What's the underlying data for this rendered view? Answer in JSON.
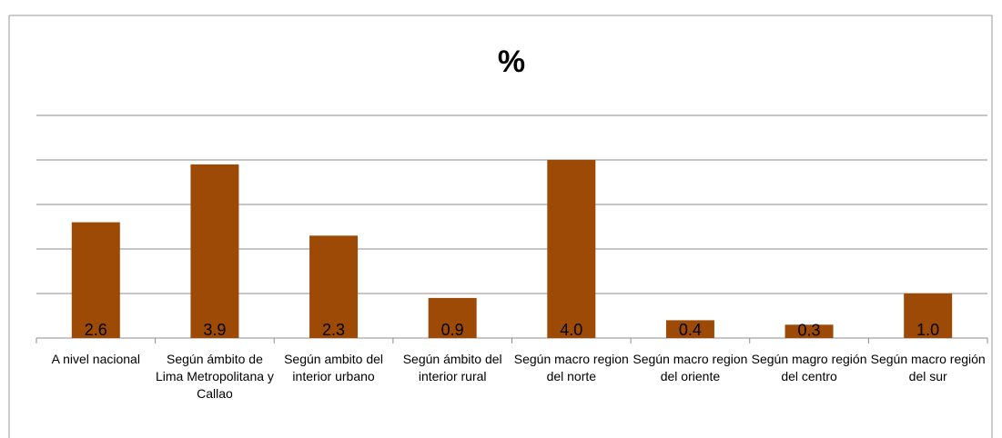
{
  "chart_data": {
    "type": "bar",
    "title": "%",
    "categories": [
      "A nivel nacional",
      "Según ámbito de Lima Metropolitana y Callao",
      "Según ambito del interior urbano",
      "Según ámbito del interior rural",
      "Según macro region del norte",
      "Según macro region del oriente",
      "Según magro región del centro",
      "Según macro región del sur"
    ],
    "values": [
      2.6,
      3.9,
      2.3,
      0.9,
      4.0,
      0.4,
      0.3,
      1.0
    ],
    "value_labels": [
      "2.6",
      "3.9",
      "2.3",
      "0.9",
      "4.0",
      "0.4",
      "0.3",
      "1.0"
    ],
    "color": "#9c4a06",
    "ylim": [
      0,
      5
    ],
    "yticks": [
      0,
      1,
      2,
      3,
      4,
      5
    ],
    "grid": true
  }
}
